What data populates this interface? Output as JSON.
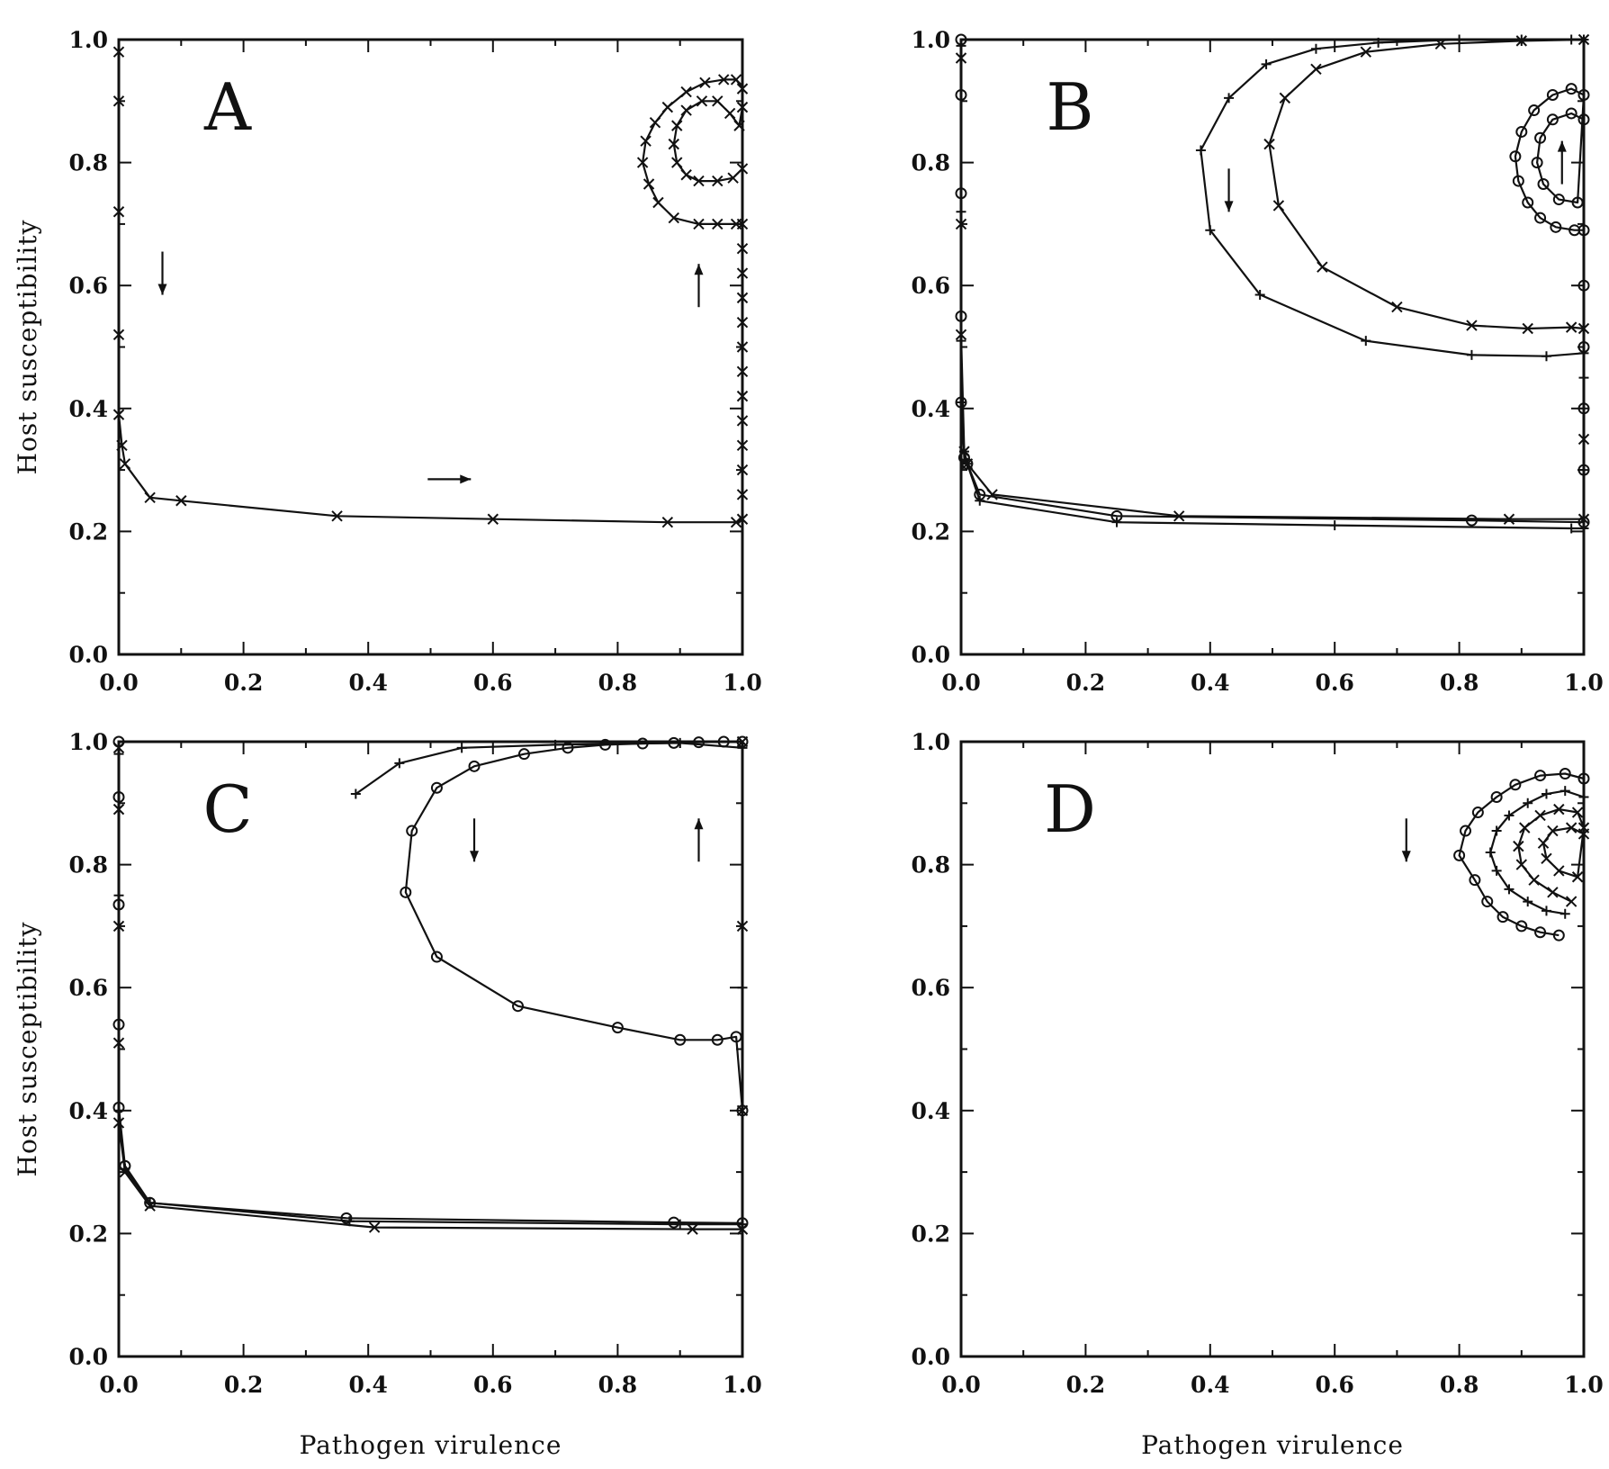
{
  "figure": {
    "xlabel": "Pathogen virulence",
    "ylabel": "Host susceptibility",
    "xticks": [
      "0.0",
      "0.2",
      "0.4",
      "0.6",
      "0.8",
      "1.0"
    ],
    "yticks": [
      "0.0",
      "0.2",
      "0.4",
      "0.6",
      "0.8",
      "1.0"
    ]
  },
  "chart_data": [
    {
      "panel": "A",
      "type": "line",
      "xlim": [
        0,
        1
      ],
      "ylim": [
        0,
        1
      ],
      "xlabel": "",
      "ylabel": "Host susceptibility",
      "series": [
        {
          "marker": "x",
          "points": [
            [
              0.0,
              0.98
            ],
            [
              0.0,
              0.9
            ],
            [
              0.0,
              0.72
            ],
            [
              0.0,
              0.52
            ],
            [
              0.0,
              0.39
            ],
            [
              0.005,
              0.34
            ],
            [
              0.01,
              0.31
            ],
            [
              0.05,
              0.255
            ],
            [
              0.1,
              0.25
            ],
            [
              0.35,
              0.225
            ],
            [
              0.6,
              0.22
            ],
            [
              0.88,
              0.215
            ],
            [
              0.99,
              0.215
            ],
            [
              1.0,
              0.22
            ],
            [
              1.0,
              0.26
            ],
            [
              1.0,
              0.3
            ],
            [
              1.0,
              0.34
            ],
            [
              1.0,
              0.38
            ],
            [
              1.0,
              0.42
            ],
            [
              1.0,
              0.46
            ],
            [
              1.0,
              0.5
            ],
            [
              1.0,
              0.54
            ],
            [
              1.0,
              0.58
            ],
            [
              1.0,
              0.62
            ],
            [
              1.0,
              0.66
            ],
            [
              1.0,
              0.7
            ],
            [
              0.99,
              0.7
            ],
            [
              0.96,
              0.7
            ],
            [
              0.93,
              0.7
            ],
            [
              0.89,
              0.71
            ],
            [
              0.865,
              0.735
            ],
            [
              0.85,
              0.765
            ],
            [
              0.84,
              0.8
            ],
            [
              0.845,
              0.835
            ],
            [
              0.86,
              0.865
            ],
            [
              0.88,
              0.89
            ],
            [
              0.91,
              0.915
            ],
            [
              0.94,
              0.93
            ],
            [
              0.97,
              0.935
            ],
            [
              0.99,
              0.935
            ],
            [
              1.0,
              0.92
            ],
            [
              1.0,
              0.89
            ],
            [
              0.995,
              0.86
            ],
            [
              0.98,
              0.88
            ],
            [
              0.96,
              0.9
            ],
            [
              0.935,
              0.9
            ],
            [
              0.91,
              0.885
            ],
            [
              0.895,
              0.86
            ],
            [
              0.89,
              0.83
            ],
            [
              0.895,
              0.8
            ],
            [
              0.91,
              0.78
            ],
            [
              0.93,
              0.77
            ],
            [
              0.96,
              0.77
            ],
            [
              0.985,
              0.775
            ],
            [
              1.0,
              0.79
            ]
          ]
        }
      ],
      "arrows": [
        {
          "x": 0.07,
          "y": 0.62,
          "direction": "down"
        },
        {
          "x": 0.93,
          "y": 0.6,
          "direction": "up"
        },
        {
          "x": 0.53,
          "y": 0.285,
          "direction": "right"
        }
      ]
    },
    {
      "panel": "B",
      "type": "line",
      "xlim": [
        0,
        1
      ],
      "ylim": [
        0,
        1
      ],
      "xlabel": "",
      "ylabel": "",
      "series": [
        {
          "marker": "+",
          "points": [
            [
              0.0,
              0.99
            ],
            [
              0.0,
              0.72
            ],
            [
              0.0,
              0.51
            ],
            [
              0.0,
              0.41
            ],
            [
              0.005,
              0.33
            ],
            [
              0.01,
              0.31
            ],
            [
              0.03,
              0.25
            ],
            [
              0.25,
              0.215
            ],
            [
              0.6,
              0.21
            ],
            [
              0.98,
              0.205
            ],
            [
              1.0,
              0.205
            ],
            [
              1.0,
              0.3
            ],
            [
              1.0,
              0.4
            ],
            [
              1.0,
              0.45
            ],
            [
              1.0,
              0.49
            ],
            [
              0.94,
              0.485
            ],
            [
              0.82,
              0.487
            ],
            [
              0.65,
              0.51
            ],
            [
              0.48,
              0.585
            ],
            [
              0.4,
              0.69
            ],
            [
              0.385,
              0.82
            ],
            [
              0.43,
              0.905
            ],
            [
              0.49,
              0.96
            ],
            [
              0.57,
              0.985
            ],
            [
              0.67,
              0.995
            ],
            [
              0.8,
              1.0
            ],
            [
              0.9,
              1.0
            ],
            [
              0.98,
              1.0
            ],
            [
              1.0,
              1.0
            ]
          ]
        },
        {
          "marker": "x",
          "points": [
            [
              0.0,
              0.97
            ],
            [
              0.0,
              0.7
            ],
            [
              0.0,
              0.52
            ],
            [
              0.005,
              0.33
            ],
            [
              0.01,
              0.31
            ],
            [
              0.05,
              0.26
            ],
            [
              0.35,
              0.225
            ],
            [
              0.88,
              0.22
            ],
            [
              1.0,
              0.22
            ],
            [
              1.0,
              0.35
            ],
            [
              1.0,
              0.53
            ],
            [
              0.98,
              0.532
            ],
            [
              0.91,
              0.53
            ],
            [
              0.82,
              0.535
            ],
            [
              0.7,
              0.565
            ],
            [
              0.58,
              0.63
            ],
            [
              0.51,
              0.73
            ],
            [
              0.495,
              0.83
            ],
            [
              0.52,
              0.905
            ],
            [
              0.57,
              0.952
            ],
            [
              0.65,
              0.98
            ],
            [
              0.77,
              0.993
            ],
            [
              0.9,
              0.998
            ],
            [
              1.0,
              1.0
            ]
          ]
        },
        {
          "marker": "o",
          "points": [
            [
              0.0,
              1.0
            ],
            [
              0.0,
              0.91
            ],
            [
              0.0,
              0.75
            ],
            [
              0.0,
              0.55
            ],
            [
              0.0,
              0.41
            ],
            [
              0.005,
              0.32
            ],
            [
              0.01,
              0.31
            ],
            [
              0.03,
              0.26
            ],
            [
              0.25,
              0.225
            ],
            [
              0.82,
              0.218
            ],
            [
              1.0,
              0.215
            ],
            [
              1.0,
              0.3
            ],
            [
              1.0,
              0.4
            ],
            [
              1.0,
              0.5
            ],
            [
              1.0,
              0.6
            ],
            [
              1.0,
              0.69
            ],
            [
              0.985,
              0.69
            ],
            [
              0.955,
              0.695
            ],
            [
              0.93,
              0.71
            ],
            [
              0.91,
              0.735
            ],
            [
              0.895,
              0.77
            ],
            [
              0.89,
              0.81
            ],
            [
              0.9,
              0.85
            ],
            [
              0.92,
              0.885
            ],
            [
              0.95,
              0.91
            ],
            [
              0.98,
              0.92
            ],
            [
              1.0,
              0.91
            ],
            [
              0.99,
              0.735
            ],
            [
              0.96,
              0.74
            ],
            [
              0.935,
              0.765
            ],
            [
              0.925,
              0.8
            ],
            [
              0.93,
              0.84
            ],
            [
              0.95,
              0.87
            ],
            [
              0.98,
              0.88
            ],
            [
              1.0,
              0.87
            ]
          ]
        }
      ],
      "arrows": [
        {
          "x": 0.43,
          "y": 0.755,
          "direction": "down"
        },
        {
          "x": 0.965,
          "y": 0.8,
          "direction": "up"
        }
      ]
    },
    {
      "panel": "C",
      "type": "line",
      "xlim": [
        0,
        1
      ],
      "ylim": [
        0,
        1
      ],
      "xlabel": "Pathogen virulence",
      "ylabel": "Host susceptibility",
      "series": [
        {
          "marker": "x",
          "points": [
            [
              0.0,
              0.99
            ],
            [
              0.0,
              0.89
            ],
            [
              0.0,
              0.7
            ],
            [
              0.0,
              0.51
            ],
            [
              0.0,
              0.38
            ],
            [
              0.01,
              0.3
            ],
            [
              0.05,
              0.245
            ],
            [
              0.41,
              0.21
            ],
            [
              0.92,
              0.207
            ],
            [
              1.0,
              0.207
            ],
            [
              1.0,
              0.4
            ],
            [
              1.0,
              0.7
            ],
            [
              1.0,
              1.0
            ]
          ]
        },
        {
          "marker": "+",
          "points": [
            [
              0.0,
              0.98
            ],
            [
              0.0,
              0.75
            ],
            [
              0.0,
              0.4
            ],
            [
              0.01,
              0.305
            ],
            [
              0.05,
              0.25
            ],
            [
              0.37,
              0.22
            ],
            [
              0.9,
              0.215
            ],
            [
              1.0,
              0.215
            ],
            [
              1.0,
              0.6
            ],
            [
              1.0,
              0.99
            ],
            [
              0.9,
              0.998
            ],
            [
              0.7,
              0.995
            ],
            [
              0.55,
              0.99
            ],
            [
              0.45,
              0.965
            ],
            [
              0.38,
              0.915
            ]
          ]
        },
        {
          "marker": "o",
          "points": [
            [
              0.0,
              1.0
            ],
            [
              0.0,
              0.91
            ],
            [
              0.0,
              0.735
            ],
            [
              0.0,
              0.54
            ],
            [
              0.0,
              0.405
            ],
            [
              0.01,
              0.31
            ],
            [
              0.05,
              0.25
            ],
            [
              0.365,
              0.225
            ],
            [
              0.89,
              0.218
            ],
            [
              1.0,
              0.217
            ],
            [
              1.0,
              0.4
            ],
            [
              0.99,
              0.52
            ],
            [
              0.96,
              0.515
            ],
            [
              0.9,
              0.515
            ],
            [
              0.8,
              0.535
            ],
            [
              0.64,
              0.57
            ],
            [
              0.51,
              0.65
            ],
            [
              0.46,
              0.755
            ],
            [
              0.47,
              0.855
            ],
            [
              0.51,
              0.925
            ],
            [
              0.57,
              0.96
            ],
            [
              0.65,
              0.98
            ],
            [
              0.72,
              0.99
            ],
            [
              0.78,
              0.995
            ],
            [
              0.84,
              0.997
            ],
            [
              0.89,
              0.998
            ],
            [
              0.93,
              0.999
            ],
            [
              0.97,
              1.0
            ],
            [
              1.0,
              1.0
            ]
          ]
        }
      ],
      "arrows": [
        {
          "x": 0.57,
          "y": 0.84,
          "direction": "down"
        },
        {
          "x": 0.93,
          "y": 0.84,
          "direction": "up"
        }
      ]
    },
    {
      "panel": "D",
      "type": "line",
      "xlim": [
        0,
        1
      ],
      "ylim": [
        0,
        1
      ],
      "xlabel": "Pathogen virulence",
      "ylabel": "",
      "series": [
        {
          "marker": "o",
          "points": [
            [
              0.96,
              0.685
            ],
            [
              0.93,
              0.69
            ],
            [
              0.9,
              0.7
            ],
            [
              0.87,
              0.715
            ],
            [
              0.845,
              0.74
            ],
            [
              0.825,
              0.775
            ],
            [
              0.8,
              0.815
            ],
            [
              0.81,
              0.855
            ],
            [
              0.83,
              0.885
            ],
            [
              0.86,
              0.91
            ],
            [
              0.89,
              0.93
            ],
            [
              0.93,
              0.945
            ],
            [
              0.97,
              0.948
            ],
            [
              1.0,
              0.94
            ]
          ]
        },
        {
          "marker": "+",
          "points": [
            [
              0.97,
              0.72
            ],
            [
              0.94,
              0.725
            ],
            [
              0.91,
              0.74
            ],
            [
              0.88,
              0.76
            ],
            [
              0.86,
              0.79
            ],
            [
              0.85,
              0.82
            ],
            [
              0.86,
              0.855
            ],
            [
              0.88,
              0.88
            ],
            [
              0.91,
              0.9
            ],
            [
              0.94,
              0.915
            ],
            [
              0.97,
              0.92
            ],
            [
              1.0,
              0.91
            ]
          ]
        },
        {
          "marker": "x",
          "points": [
            [
              0.98,
              0.74
            ],
            [
              0.95,
              0.755
            ],
            [
              0.92,
              0.775
            ],
            [
              0.9,
              0.8
            ],
            [
              0.895,
              0.83
            ],
            [
              0.905,
              0.86
            ],
            [
              0.93,
              0.88
            ],
            [
              0.96,
              0.89
            ],
            [
              0.99,
              0.885
            ],
            [
              1.0,
              0.86
            ],
            [
              0.99,
              0.78
            ],
            [
              0.96,
              0.79
            ],
            [
              0.94,
              0.81
            ],
            [
              0.935,
              0.835
            ],
            [
              0.95,
              0.855
            ],
            [
              0.98,
              0.86
            ],
            [
              1.0,
              0.85
            ]
          ]
        }
      ],
      "arrows": [
        {
          "x": 0.715,
          "y": 0.84,
          "direction": "down"
        }
      ]
    }
  ]
}
